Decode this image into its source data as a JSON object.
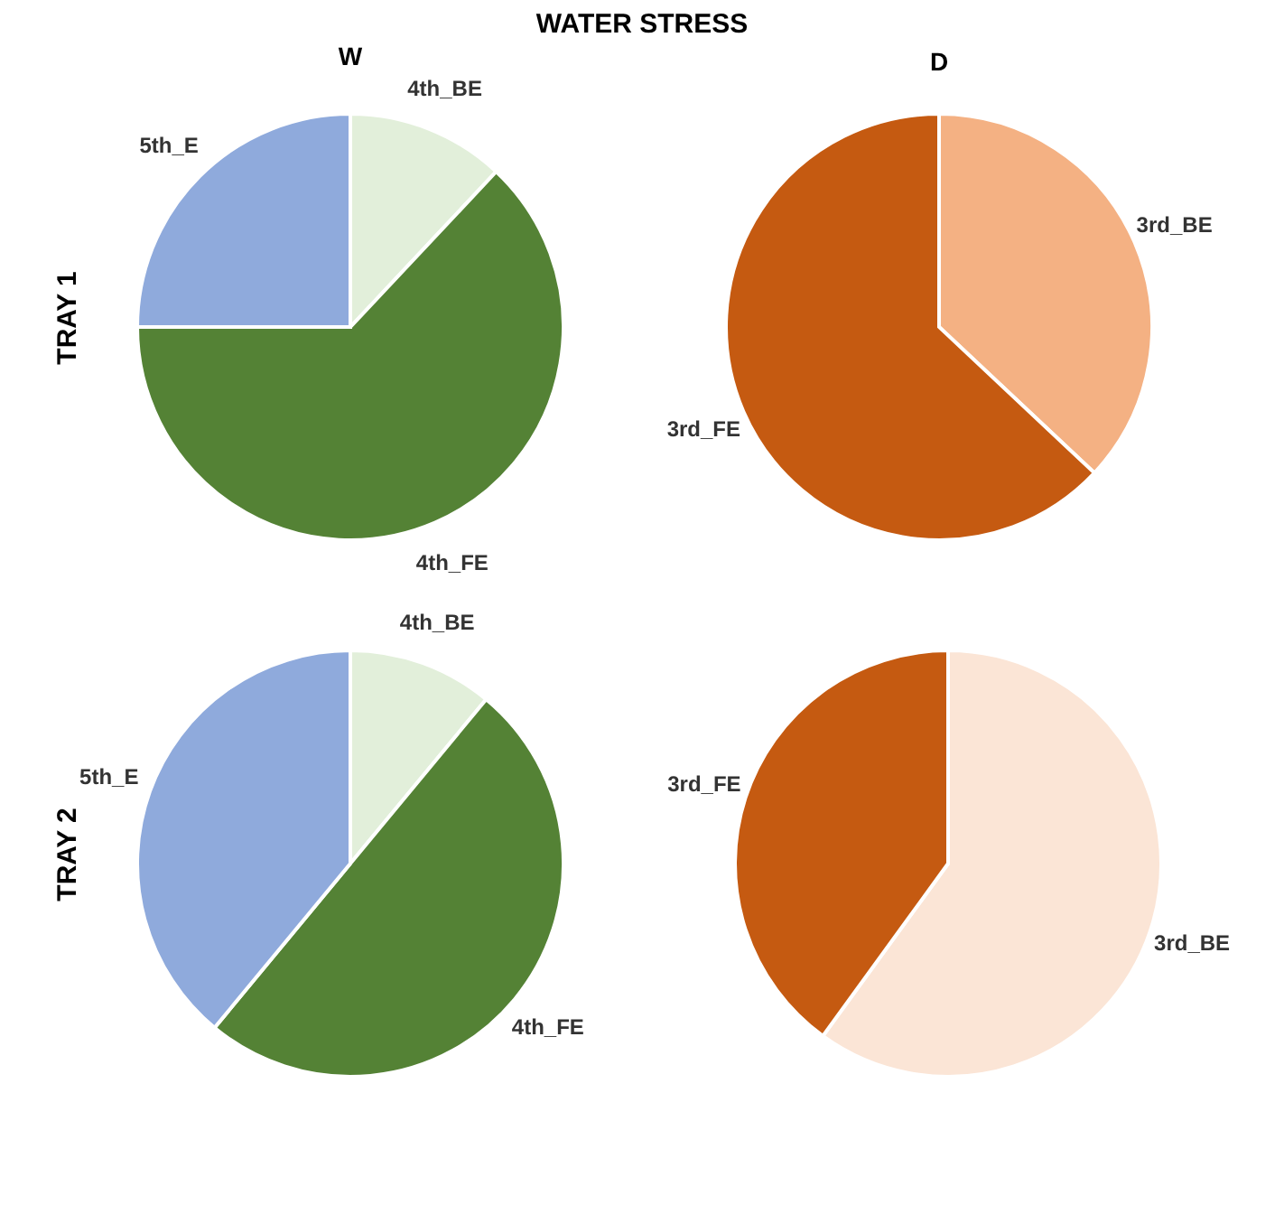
{
  "chart_data": [
    {
      "type": "pie",
      "title": "W",
      "ylabel": "TRAY 1",
      "annotations": [
        "WATER STRESS"
      ],
      "categories": [
        "4th_BE",
        "4th_FE",
        "5th_E"
      ],
      "values": [
        12,
        63,
        25
      ],
      "colors": [
        "#e2efda",
        "#548235",
        "#8faadc"
      ]
    },
    {
      "type": "pie",
      "title": "D",
      "categories": [
        "3rd_BE",
        "3rd_FE"
      ],
      "values": [
        37,
        63
      ],
      "colors": [
        "#f4b183",
        "#c55a11"
      ]
    },
    {
      "type": "pie",
      "ylabel": "TRAY 2",
      "categories": [
        "4th_BE",
        "4th_FE",
        "5th_E"
      ],
      "values": [
        11,
        50,
        39
      ],
      "colors": [
        "#e2efda",
        "#548235",
        "#8faadc"
      ]
    },
    {
      "type": "pie",
      "categories": [
        "3rd_BE",
        "3rd_FE"
      ],
      "values": [
        60,
        40
      ],
      "colors": [
        "#fbe5d6",
        "#c55a11"
      ]
    }
  ]
}
